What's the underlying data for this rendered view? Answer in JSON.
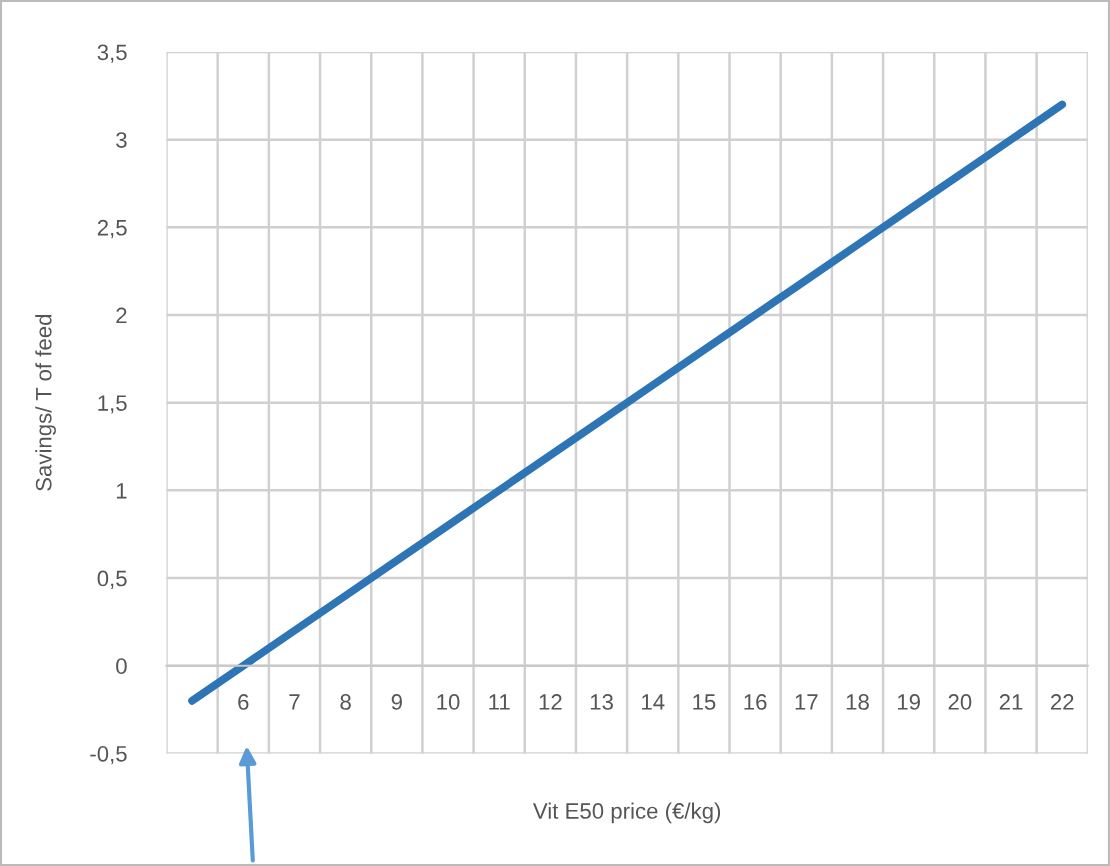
{
  "chart_data": {
    "type": "line",
    "xlabel": "Vit E50 price (€/kg)",
    "ylabel": "Savings/ T of feed",
    "categories": [
      null,
      "6",
      "7",
      "8",
      "9",
      "10",
      "11",
      "12",
      "13",
      "14",
      "15",
      "16",
      "17",
      "18",
      "19",
      "20",
      "21",
      "22"
    ],
    "series": [
      {
        "color": "#2e75b6",
        "values": [
          -0.2,
          0.0,
          0.2,
          0.4,
          0.6,
          0.8,
          1.0,
          1.2,
          1.4,
          1.6,
          1.8,
          2.0,
          2.2,
          2.4,
          2.6,
          2.8,
          3.0,
          3.2
        ]
      }
    ],
    "ylim": [
      -0.5,
      3.5
    ],
    "yticks": [
      {
        "value": -0.5,
        "label": "-0,5"
      },
      {
        "value": 0,
        "label": "0"
      },
      {
        "value": 0.5,
        "label": "0,5"
      },
      {
        "value": 1,
        "label": "1"
      },
      {
        "value": 1.5,
        "label": "1,5"
      },
      {
        "value": 2,
        "label": "2"
      },
      {
        "value": 2.5,
        "label": "2,5"
      },
      {
        "value": 3,
        "label": "3"
      },
      {
        "value": 3.5,
        "label": "3,5"
      }
    ],
    "grid": true,
    "marker": "none",
    "line_style": "solid",
    "legend": false
  }
}
